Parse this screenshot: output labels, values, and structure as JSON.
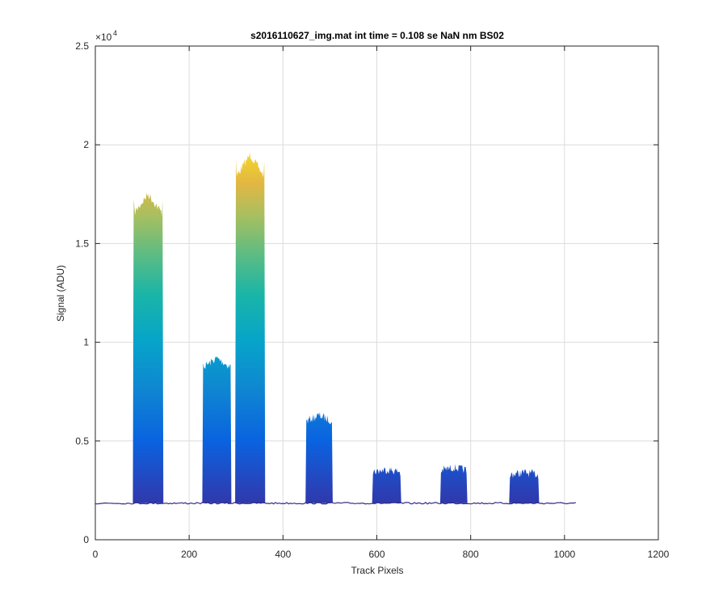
{
  "chart_data": {
    "type": "area",
    "title": "s2016110627_img.mat int time = 0.108 se  NaN nm BS02",
    "xlabel": "Track Pixels",
    "ylabel": "Signal (ADU)",
    "xlim": [
      0,
      1200
    ],
    "ylim": [
      0,
      25000
    ],
    "x_ticks": [
      "0",
      "200",
      "400",
      "600",
      "800",
      "1000",
      "1200"
    ],
    "y_ticks": [
      "0",
      "0.5",
      "1",
      "1.5",
      "2",
      "2.5"
    ],
    "y_multiplier": {
      "base": "×10",
      "exponent": "4"
    },
    "grid": true,
    "colormap": "parula",
    "baseline": 1850,
    "x_end": 1024,
    "peaks": [
      {
        "x_start": 80,
        "x_end": 145,
        "y_min": 1850,
        "y_max": 17500
      },
      {
        "x_start": 228,
        "x_end": 290,
        "y_min": 1850,
        "y_max": 9200
      },
      {
        "x_start": 298,
        "x_end": 362,
        "y_min": 1850,
        "y_max": 19500
      },
      {
        "x_start": 448,
        "x_end": 506,
        "y_min": 1850,
        "y_max": 6300
      },
      {
        "x_start": 590,
        "x_end": 652,
        "y_min": 1850,
        "y_max": 3550
      },
      {
        "x_start": 735,
        "x_end": 793,
        "y_min": 1850,
        "y_max": 3650
      },
      {
        "x_start": 882,
        "x_end": 946,
        "y_min": 1850,
        "y_max": 3400
      }
    ]
  }
}
